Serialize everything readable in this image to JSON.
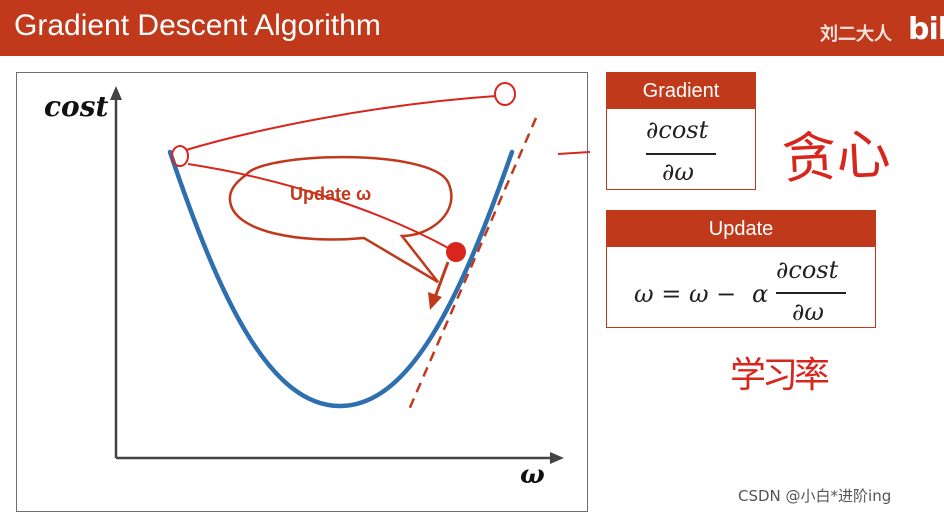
{
  "slide": {
    "title": "Gradient Descent Algorithm",
    "channel": "刘二大人",
    "logo": "bili"
  },
  "plot": {
    "y_axis_label": "cost",
    "x_axis_label": "ω",
    "callout": "Update ω"
  },
  "gradient_box": {
    "header": "Gradient",
    "numerator": "∂cost",
    "denominator": "∂ω"
  },
  "update_box": {
    "header": "Update",
    "lhs": "ω = ω −",
    "alpha": "α",
    "numerator": "∂cost",
    "denominator": "∂ω"
  },
  "handwriting": {
    "greedy": "贪心",
    "learning_rate": "学习率"
  },
  "watermark": "CSDN @小白*进阶ing",
  "colors": {
    "brand_red": "#c0391b",
    "curve_blue": "#2e6fb0",
    "annotation_red": "#d8261c"
  }
}
